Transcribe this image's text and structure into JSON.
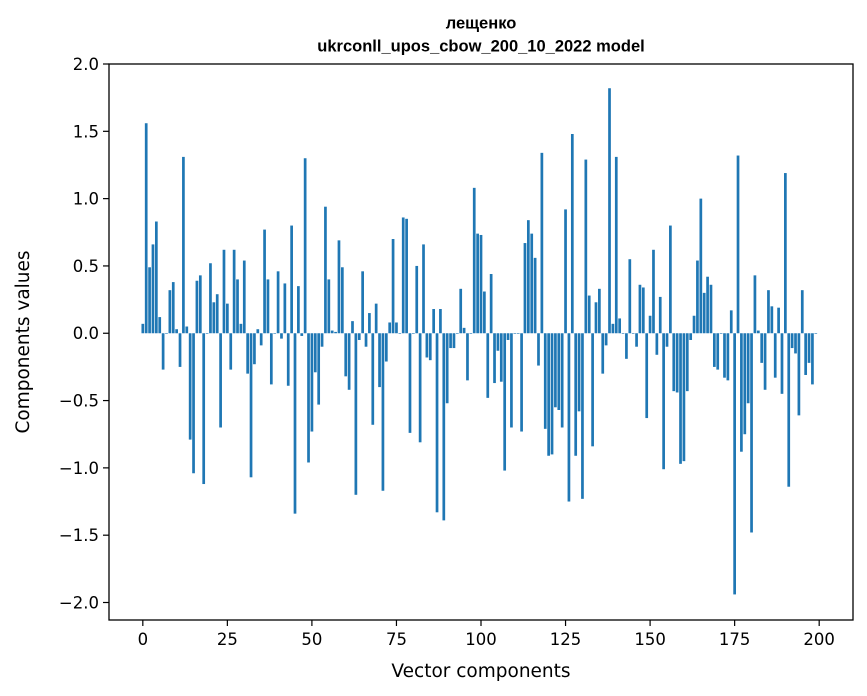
{
  "chart_data": {
    "type": "bar",
    "title": "лещенко",
    "subtitle": "ukrconll_upos_cbow_200_10_2022 model",
    "xlabel": "Vector components",
    "ylabel": "Components values",
    "xlim": [
      -10,
      210
    ],
    "ylim": [
      -2.13,
      2.0
    ],
    "xticks": [
      0,
      25,
      50,
      75,
      100,
      125,
      150,
      175,
      200
    ],
    "yticks": [
      2.0,
      1.5,
      1.0,
      0.5,
      0.0,
      -0.5,
      -1.0,
      -1.5,
      -2.0
    ],
    "xtick_labels": [
      "0",
      "25",
      "50",
      "75",
      "100",
      "125",
      "150",
      "175",
      "200"
    ],
    "ytick_labels": [
      "2.0",
      "1.5",
      "1.0",
      "0.5",
      "0.0",
      "−0.5",
      "−1.0",
      "−1.5",
      "−2.0"
    ],
    "bar_color": "#1f77b4",
    "grid": false,
    "values": [
      0.07,
      1.56,
      0.49,
      0.66,
      0.83,
      0.12,
      -0.27,
      0.0,
      0.32,
      0.38,
      0.03,
      -0.25,
      1.31,
      0.05,
      -0.79,
      -1.04,
      0.39,
      0.43,
      -1.12,
      0.0,
      0.52,
      0.23,
      0.29,
      -0.7,
      0.62,
      0.22,
      -0.27,
      0.62,
      0.4,
      0.07,
      0.54,
      -0.3,
      -1.07,
      -0.23,
      0.03,
      -0.09,
      0.77,
      0.4,
      -0.38,
      0.0,
      0.46,
      -0.04,
      0.37,
      -0.39,
      0.8,
      -1.34,
      0.35,
      -0.02,
      1.3,
      -0.96,
      -0.73,
      -0.29,
      -0.53,
      -0.1,
      0.94,
      0.4,
      0.02,
      0.01,
      0.69,
      0.49,
      -0.32,
      -0.42,
      0.09,
      -1.2,
      -0.05,
      0.46,
      -0.1,
      0.15,
      -0.68,
      0.22,
      -0.4,
      -1.17,
      -0.21,
      0.08,
      0.7,
      0.08,
      0.0,
      0.86,
      0.85,
      -0.74,
      0.0,
      0.5,
      -0.81,
      0.66,
      -0.18,
      -0.2,
      0.18,
      -1.33,
      0.18,
      -1.39,
      -0.52,
      -0.11,
      -0.11,
      0.0,
      0.33,
      0.04,
      -0.35,
      0.0,
      1.08,
      0.74,
      0.73,
      0.31,
      -0.48,
      0.44,
      -0.37,
      -0.13,
      -0.36,
      -1.02,
      -0.05,
      -0.7,
      0.0,
      0.0,
      -0.73,
      0.67,
      0.84,
      0.74,
      0.56,
      -0.24,
      1.34,
      -0.71,
      -0.91,
      -0.9,
      -0.55,
      -0.57,
      -0.7,
      0.92,
      -1.25,
      1.48,
      -0.91,
      -0.58,
      -1.23,
      1.29,
      0.28,
      -0.84,
      0.23,
      0.33,
      -0.3,
      -0.09,
      1.82,
      0.07,
      1.31,
      0.11,
      0.0,
      -0.19,
      0.55,
      0.0,
      -0.1,
      0.36,
      0.34,
      -0.63,
      0.13,
      0.62,
      -0.16,
      0.27,
      -1.01,
      -0.1,
      0.8,
      -0.43,
      -0.44,
      -0.97,
      -0.95,
      -0.43,
      -0.05,
      0.13,
      0.54,
      1.0,
      0.3,
      0.42,
      0.36,
      -0.25,
      -0.27,
      0.0,
      -0.33,
      -0.35,
      0.17,
      -1.94,
      1.32,
      -0.88,
      -0.75,
      -0.52,
      -1.48,
      0.43,
      0.02,
      -0.22,
      -0.42,
      0.32,
      0.2,
      -0.33,
      0.19,
      -0.45,
      1.19,
      -1.14,
      -0.11,
      -0.15,
      -0.61,
      0.32,
      -0.31,
      -0.22,
      -0.38,
      0.0
    ]
  }
}
